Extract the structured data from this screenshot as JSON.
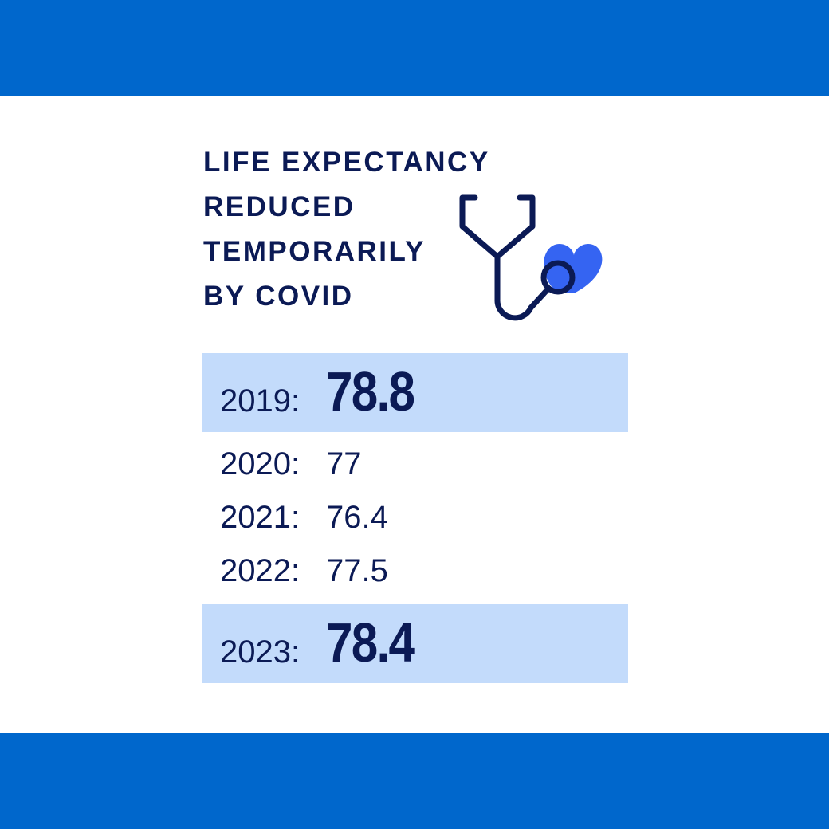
{
  "colors": {
    "band": "#0067CC",
    "navy": "#0B1A55",
    "highlight": "#C3DBFB",
    "heart": "#3564F2"
  },
  "title_lines": [
    "LIFE EXPECTANCY",
    "REDUCED",
    "TEMPORARILY",
    "BY COVID"
  ],
  "icon": "stethoscope-heart-icon",
  "rows": [
    {
      "label": "2019:",
      "value": "78.8",
      "highlight": true
    },
    {
      "label": "2020:",
      "value": "77",
      "highlight": false
    },
    {
      "label": "2021:",
      "value": "76.4",
      "highlight": false
    },
    {
      "label": "2022:",
      "value": "77.5",
      "highlight": false
    },
    {
      "label": "2023:",
      "value": "78.4",
      "highlight": true
    }
  ]
}
